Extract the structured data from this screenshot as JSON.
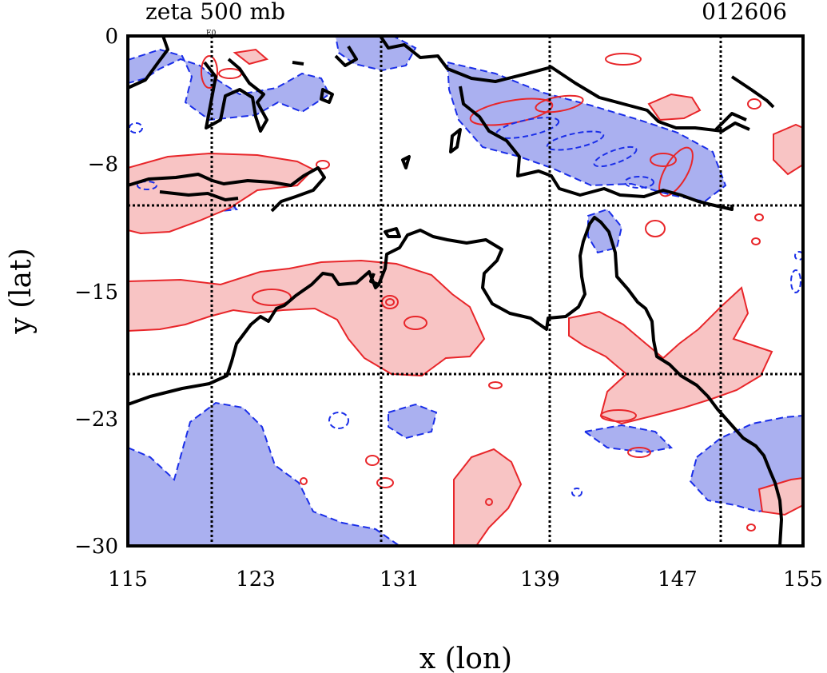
{
  "header": {
    "title": "zeta 500 mb",
    "timestamp": "012606"
  },
  "map": {
    "xlabel": "x (lon)",
    "ylabel": "y (lat)",
    "x_ticks": [
      "115",
      "123",
      "131",
      "139",
      "147",
      "155"
    ],
    "y_ticks": [
      "0",
      "−8",
      "−15",
      "−23",
      "−30"
    ],
    "xlim": [
      115,
      155
    ],
    "ylim": [
      -30,
      0
    ],
    "grid": true,
    "colors": {
      "positive_fill": "#f8c4c4",
      "positive_line": "#e8262a",
      "negative_fill": "#aab0f0",
      "negative_line": "#1a2ee8",
      "coastline": "#000000",
      "grid": "#000000"
    }
  }
}
